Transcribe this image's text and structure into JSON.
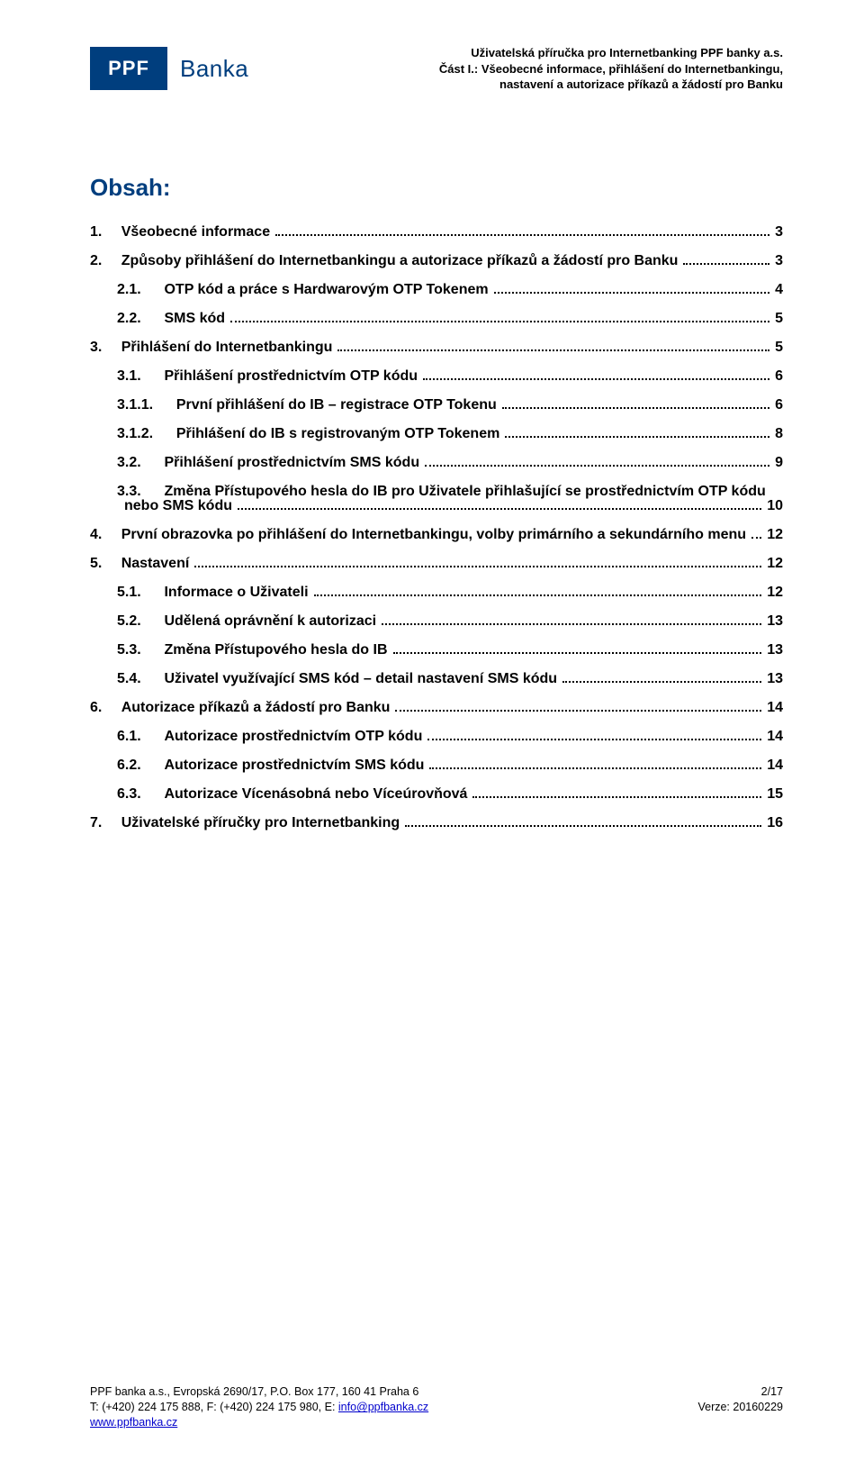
{
  "headerMeta": {
    "line1": "Uživatelská příručka pro Internetbanking PPF banky a.s.",
    "line2": "Část I.: Všeobecné informace, přihlášení do Internetbankingu,",
    "line3": "nastavení a autorizace příkazů a žádostí pro Banku"
  },
  "logo": {
    "box": "PPF",
    "text": "Banka"
  },
  "obsahTitle": "Obsah:",
  "toc": [
    {
      "num": "1.",
      "label": "Všeobecné informace",
      "page": "3",
      "indent": 0
    },
    {
      "num": "2.",
      "label": "Způsoby přihlášení do Internetbankingu a autorizace příkazů a žádostí pro Banku",
      "page": "3",
      "indent": 0
    },
    {
      "num": "2.1.",
      "label": "OTP kód a práce s Hardwarovým OTP Tokenem",
      "page": "4",
      "indent": 1
    },
    {
      "num": "2.2.",
      "label": "SMS kód",
      "page": "5",
      "indent": 1
    },
    {
      "num": "3.",
      "label": "Přihlášení do Internetbankingu",
      "page": "5",
      "indent": 0
    },
    {
      "num": "3.1.",
      "label": "Přihlášení prostřednictvím OTP kódu",
      "page": "6",
      "indent": 1
    },
    {
      "num": "3.1.1.",
      "label": "První přihlášení do IB – registrace OTP Tokenu",
      "page": "6",
      "indent": 2
    },
    {
      "num": "3.1.2.",
      "label": "Přihlášení do IB s registrovaným OTP Tokenem",
      "page": "8",
      "indent": 2
    },
    {
      "num": "3.2.",
      "label": "Přihlášení prostřednictvím SMS kódu",
      "page": "9",
      "indent": 1
    },
    {
      "num": "3.3.",
      "label": "Změna Přístupového hesla do IB pro Uživatele přihlašující se prostřednictvím OTP kódu",
      "label2": "nebo SMS kódu",
      "page": "10",
      "indent": 1,
      "wrap": true
    },
    {
      "num": "4.",
      "label": "První obrazovka po přihlášení do Internetbankingu, volby primárního a sekundárního menu",
      "page": "12",
      "indent": 0
    },
    {
      "num": "5.",
      "label": "Nastavení",
      "page": "12",
      "indent": 0
    },
    {
      "num": "5.1.",
      "label": "Informace o Uživateli",
      "page": "12",
      "indent": 1
    },
    {
      "num": "5.2.",
      "label": "Udělená oprávnění k autorizaci",
      "page": "13",
      "indent": 1
    },
    {
      "num": "5.3.",
      "label": "Změna Přístupového hesla do IB",
      "page": "13",
      "indent": 1
    },
    {
      "num": "5.4.",
      "label": "Uživatel využívající SMS kód – detail nastavení SMS kódu",
      "page": "13",
      "indent": 1
    },
    {
      "num": "6.",
      "label": "Autorizace příkazů a žádostí pro Banku",
      "page": "14",
      "indent": 0
    },
    {
      "num": "6.1.",
      "label": "Autorizace prostřednictvím OTP kódu",
      "page": "14",
      "indent": 1
    },
    {
      "num": "6.2.",
      "label": "Autorizace prostřednictvím SMS kódu",
      "page": "14",
      "indent": 1
    },
    {
      "num": "6.3.",
      "label": "Autorizace Vícenásobná nebo Víceúrovňová",
      "page": "15",
      "indent": 1
    },
    {
      "num": "7.",
      "label": "Uživatelské příručky pro Internetbanking",
      "page": "16",
      "indent": 0
    }
  ],
  "footer": {
    "left1": "PPF banka a.s., Evropská 2690/17, P.O. Box 177, 160 41 Praha 6",
    "left2a": "T: (+420) 224 175 888, F: (+420) 224 175 980, E: ",
    "left2link": "info@ppfbanka.cz",
    "left3link": "www.ppfbanka.cz",
    "right1": "2/17",
    "right2": "Verze: 20160229"
  }
}
